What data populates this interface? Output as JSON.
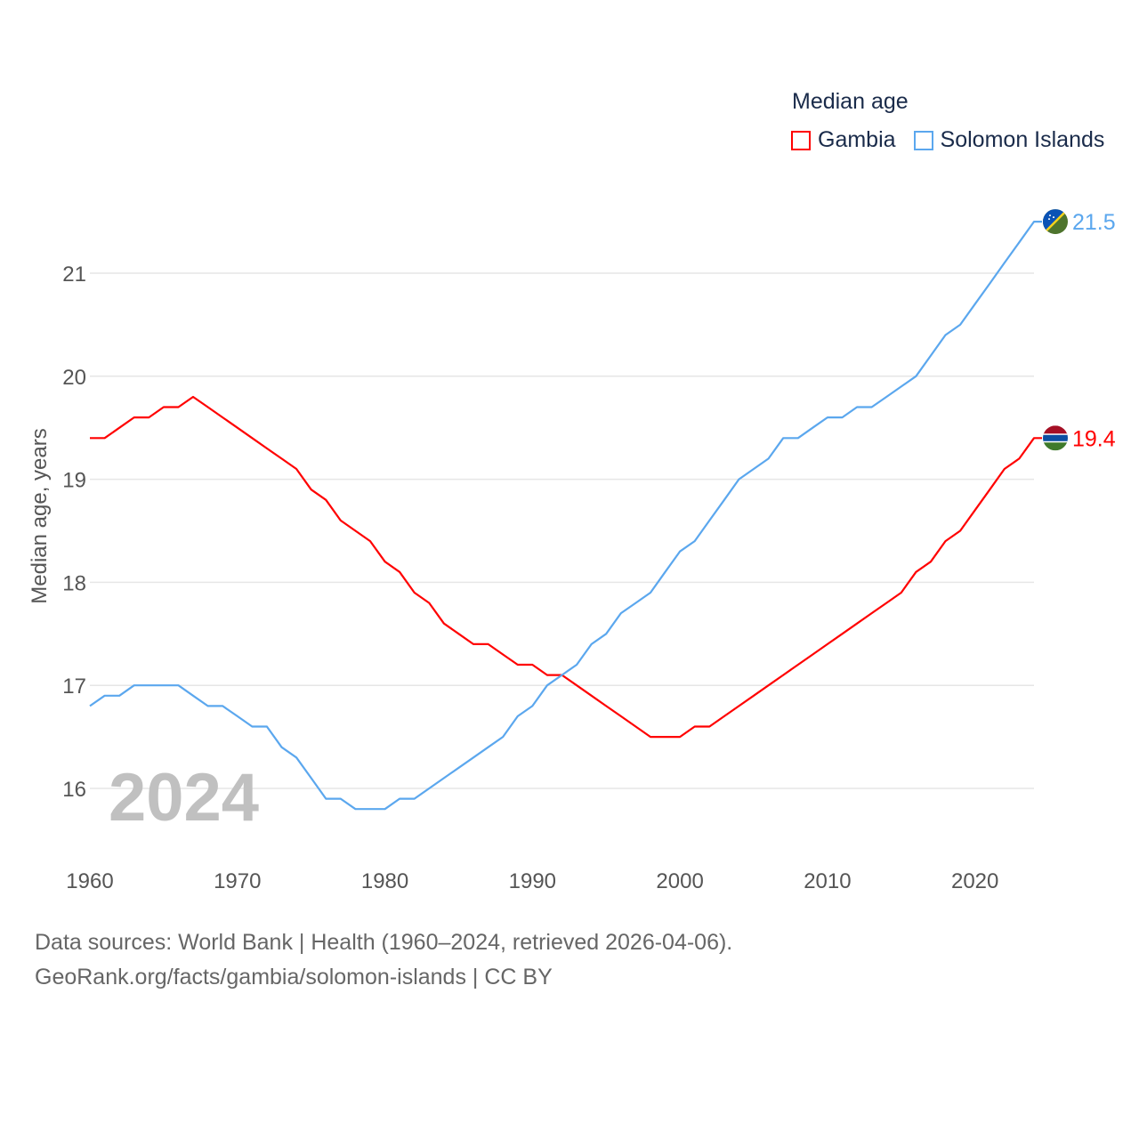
{
  "chart_data": {
    "type": "line",
    "title": "Median age",
    "ylabel": "Median age, years",
    "xlabel": "",
    "xlim": [
      1960,
      2024
    ],
    "ylim": [
      15.5,
      21.8
    ],
    "x_ticks": [
      1960,
      1970,
      1980,
      1990,
      2000,
      2010,
      2020
    ],
    "y_ticks": [
      16,
      17,
      18,
      19,
      20,
      21
    ],
    "grid": true,
    "legend_placement": "top-right",
    "year_label": "2024",
    "x": [
      1960,
      1961,
      1962,
      1963,
      1964,
      1965,
      1966,
      1967,
      1968,
      1969,
      1970,
      1971,
      1972,
      1973,
      1974,
      1975,
      1976,
      1977,
      1978,
      1979,
      1980,
      1981,
      1982,
      1983,
      1984,
      1985,
      1986,
      1987,
      1988,
      1989,
      1990,
      1991,
      1992,
      1993,
      1994,
      1995,
      1996,
      1997,
      1998,
      1999,
      2000,
      2001,
      2002,
      2003,
      2004,
      2005,
      2006,
      2007,
      2008,
      2009,
      2010,
      2011,
      2012,
      2013,
      2014,
      2015,
      2016,
      2017,
      2018,
      2019,
      2020,
      2021,
      2022,
      2023,
      2024
    ],
    "series": [
      {
        "name": "Gambia",
        "color": "#ff0000",
        "end_label": "19.4",
        "flag": "gambia-flag",
        "values": [
          19.4,
          19.4,
          19.5,
          19.6,
          19.6,
          19.7,
          19.7,
          19.8,
          19.7,
          19.6,
          19.5,
          19.4,
          19.3,
          19.2,
          19.1,
          18.9,
          18.8,
          18.6,
          18.5,
          18.4,
          18.2,
          18.1,
          17.9,
          17.8,
          17.6,
          17.5,
          17.4,
          17.4,
          17.3,
          17.2,
          17.2,
          17.1,
          17.1,
          17.0,
          16.9,
          16.8,
          16.7,
          16.6,
          16.5,
          16.5,
          16.5,
          16.6,
          16.6,
          16.7,
          16.8,
          16.9,
          17.0,
          17.1,
          17.2,
          17.3,
          17.4,
          17.5,
          17.6,
          17.7,
          17.8,
          17.9,
          18.1,
          18.2,
          18.4,
          18.5,
          18.7,
          18.9,
          19.1,
          19.2,
          19.4
        ]
      },
      {
        "name": "Solomon Islands",
        "color": "#5ba7ee",
        "end_label": "21.5",
        "flag": "solomon-islands-flag",
        "values": [
          16.8,
          16.9,
          16.9,
          17.0,
          17.0,
          17.0,
          17.0,
          16.9,
          16.8,
          16.8,
          16.7,
          16.6,
          16.6,
          16.4,
          16.3,
          16.1,
          15.9,
          15.9,
          15.8,
          15.8,
          15.8,
          15.9,
          15.9,
          16.0,
          16.1,
          16.2,
          16.3,
          16.4,
          16.5,
          16.7,
          16.8,
          17.0,
          17.1,
          17.2,
          17.4,
          17.5,
          17.7,
          17.8,
          17.9,
          18.1,
          18.3,
          18.4,
          18.6,
          18.8,
          19.0,
          19.1,
          19.2,
          19.4,
          19.4,
          19.5,
          19.6,
          19.6,
          19.7,
          19.7,
          19.8,
          19.9,
          20.0,
          20.2,
          20.4,
          20.5,
          20.7,
          20.9,
          21.1,
          21.3,
          21.5
        ]
      }
    ]
  },
  "footer": {
    "line1": "Data sources: World Bank | Health (1960–2024, retrieved 2026-04-06).",
    "line2": "GeoRank.org/facts/gambia/solomon-islands | CC BY"
  }
}
